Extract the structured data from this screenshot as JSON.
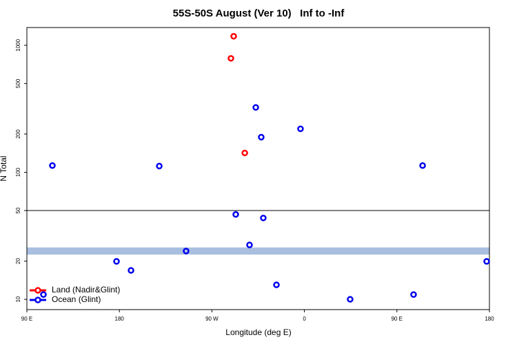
{
  "chart_data": {
    "type": "scatter",
    "title": "55S-50S August (Ver 10)   Inf to -Inf",
    "xlabel": "Longitude (deg E)",
    "ylabel": "N Total",
    "xlim": [
      90,
      540
    ],
    "xticks": [
      {
        "value": 90,
        "label": "90 E"
      },
      {
        "value": 180,
        "label": "180"
      },
      {
        "value": 270,
        "label": "90 W"
      },
      {
        "value": 360,
        "label": "0"
      },
      {
        "value": 450,
        "label": "90 E"
      },
      {
        "value": 540,
        "label": "180"
      }
    ],
    "ylim": [
      8.3,
      1380
    ],
    "yscale": "log",
    "yticks": [
      10,
      20,
      50,
      100,
      200,
      500,
      1000
    ],
    "hline": 50,
    "band": [
      22.5,
      25.6
    ],
    "band_color": "#a8bfe0",
    "legend": "lower left",
    "series": [
      {
        "name": "Land (Nadir&Glint)",
        "color": "#ff0000",
        "x": [
          291.2,
          288.5,
          302
        ],
        "values": [
          1178,
          789,
          142
        ]
      },
      {
        "name": "Ocean (Glint)",
        "color": "#0000ee",
        "x": [
          114.8,
          218.8,
          312.7,
          356.2,
          318,
          475,
          293.2,
          320,
          306.6,
          244.9,
          177.2,
          191.3,
          332.8,
          404.5,
          466.2,
          537.3,
          106.1
        ],
        "values": [
          113,
          112,
          324,
          220,
          189,
          113,
          46.6,
          43.7,
          26.8,
          24,
          19.9,
          16.9,
          13,
          10,
          10.9,
          19.9,
          10.9
        ]
      }
    ]
  }
}
